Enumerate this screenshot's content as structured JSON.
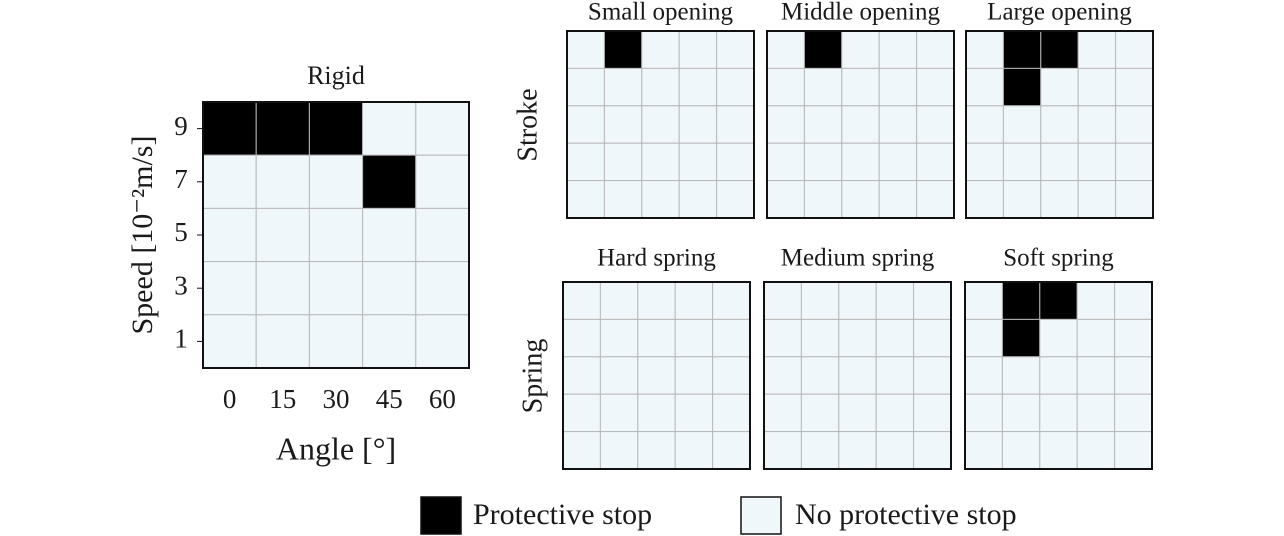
{
  "chart_data": [
    {
      "type": "heatmap",
      "title": "Rigid",
      "x_label": "Angle [°]",
      "y_label": "Speed [10⁻²m/s]",
      "x_categories": [
        0,
        15,
        30,
        45,
        60
      ],
      "y_categories": [
        9,
        7,
        5,
        3,
        1
      ],
      "values": [
        [
          1,
          1,
          1,
          0,
          0
        ],
        [
          0,
          0,
          0,
          1,
          0
        ],
        [
          0,
          0,
          0,
          0,
          0
        ],
        [
          0,
          0,
          0,
          0,
          0
        ],
        [
          0,
          0,
          0,
          0,
          0
        ]
      ]
    },
    {
      "type": "heatmap",
      "title": "Small opening",
      "values": [
        [
          0,
          1,
          0,
          0,
          0
        ],
        [
          0,
          0,
          0,
          0,
          0
        ],
        [
          0,
          0,
          0,
          0,
          0
        ],
        [
          0,
          0,
          0,
          0,
          0
        ],
        [
          0,
          0,
          0,
          0,
          0
        ]
      ]
    },
    {
      "type": "heatmap",
      "title": "Middle opening",
      "values": [
        [
          0,
          1,
          0,
          0,
          0
        ],
        [
          0,
          0,
          0,
          0,
          0
        ],
        [
          0,
          0,
          0,
          0,
          0
        ],
        [
          0,
          0,
          0,
          0,
          0
        ],
        [
          0,
          0,
          0,
          0,
          0
        ]
      ]
    },
    {
      "type": "heatmap",
      "title": "Large opening",
      "values": [
        [
          0,
          1,
          1,
          0,
          0
        ],
        [
          0,
          1,
          0,
          0,
          0
        ],
        [
          0,
          0,
          0,
          0,
          0
        ],
        [
          0,
          0,
          0,
          0,
          0
        ],
        [
          0,
          0,
          0,
          0,
          0
        ]
      ]
    },
    {
      "type": "heatmap",
      "title": "Hard spring",
      "values": [
        [
          0,
          0,
          0,
          0,
          0
        ],
        [
          0,
          0,
          0,
          0,
          0
        ],
        [
          0,
          0,
          0,
          0,
          0
        ],
        [
          0,
          0,
          0,
          0,
          0
        ],
        [
          0,
          0,
          0,
          0,
          0
        ]
      ]
    },
    {
      "type": "heatmap",
      "title": "Medium spring",
      "values": [
        [
          0,
          0,
          0,
          0,
          0
        ],
        [
          0,
          0,
          0,
          0,
          0
        ],
        [
          0,
          0,
          0,
          0,
          0
        ],
        [
          0,
          0,
          0,
          0,
          0
        ],
        [
          0,
          0,
          0,
          0,
          0
        ]
      ]
    },
    {
      "type": "heatmap",
      "title": "Soft spring",
      "values": [
        [
          0,
          1,
          1,
          0,
          0
        ],
        [
          0,
          1,
          0,
          0,
          0
        ],
        [
          0,
          0,
          0,
          0,
          0
        ],
        [
          0,
          0,
          0,
          0,
          0
        ],
        [
          0,
          0,
          0,
          0,
          0
        ]
      ]
    }
  ],
  "row_labels": [
    "Stroke",
    "Spring"
  ],
  "legend": [
    {
      "label": "Protective stop",
      "value": 1,
      "color": "#000000"
    },
    {
      "label": "No protective stop",
      "value": 0,
      "color": "#f0f7fb"
    }
  ]
}
